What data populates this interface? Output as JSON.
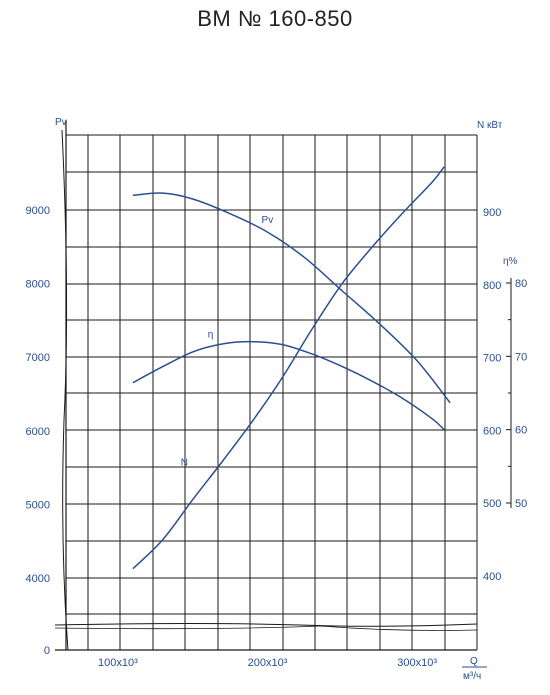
{
  "title": "ВМ № 160-850",
  "chart_data": {
    "type": "line",
    "title": "ВМ № 160-850",
    "left_axis": {
      "label": "Pv",
      "ticks": [
        0,
        4000,
        5000,
        6000,
        7000,
        8000,
        9000
      ],
      "range": [
        0,
        9900
      ]
    },
    "right_axis_n": {
      "label": "N кВт",
      "ticks": [
        400,
        500,
        600,
        700,
        800,
        900
      ],
      "range": [
        300,
        990
      ]
    },
    "right_axis_eta": {
      "label": "η%",
      "ticks": [
        50,
        60,
        70,
        80
      ],
      "range": [
        45,
        90
      ]
    },
    "x_axis": {
      "label_top": "Q",
      "label_bottom": "м³/ч",
      "ticks": [
        {
          "value": 100000,
          "label": "100x10³"
        },
        {
          "value": 200000,
          "label": "200x10³"
        },
        {
          "value": 300000,
          "label": "300x10³"
        }
      ],
      "range": [
        80000,
        340000
      ]
    },
    "series": [
      {
        "name": "Pv",
        "axis": "left",
        "points": [
          [
            110000,
            9200
          ],
          [
            130000,
            9230
          ],
          [
            150000,
            9150
          ],
          [
            175000,
            8950
          ],
          [
            200000,
            8700
          ],
          [
            225000,
            8350
          ],
          [
            250000,
            7900
          ],
          [
            275000,
            7450
          ],
          [
            300000,
            6950
          ],
          [
            322000,
            6380
          ]
        ]
      },
      {
        "name": "η",
        "axis": "eta",
        "points": [
          [
            110000,
            66.4
          ],
          [
            130000,
            68.6
          ],
          [
            150000,
            70.6
          ],
          [
            170000,
            71.7
          ],
          [
            190000,
            72.0
          ],
          [
            210000,
            71.6
          ],
          [
            230000,
            70.3
          ],
          [
            250000,
            68.6
          ],
          [
            270000,
            66.6
          ],
          [
            290000,
            64.3
          ],
          [
            310000,
            61.5
          ],
          [
            318000,
            60.0
          ]
        ]
      },
      {
        "name": "N",
        "axis": "n",
        "points": [
          [
            110000,
            410
          ],
          [
            130000,
            450
          ],
          [
            150000,
            505
          ],
          [
            170000,
            558
          ],
          [
            190000,
            613
          ],
          [
            210000,
            673
          ],
          [
            230000,
            740
          ],
          [
            250000,
            802
          ],
          [
            270000,
            852
          ],
          [
            290000,
            898
          ],
          [
            310000,
            941
          ],
          [
            318000,
            962
          ]
        ]
      }
    ]
  }
}
